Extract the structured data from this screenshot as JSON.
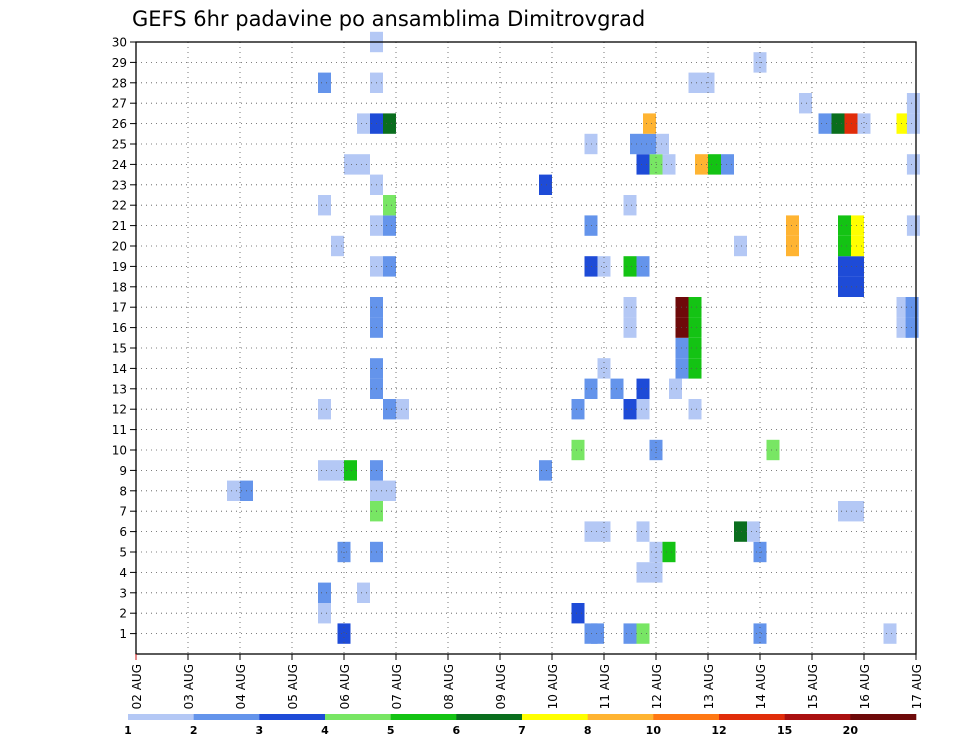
{
  "chart_data": {
    "type": "heatmap",
    "title": "GEFS 6hr padavine po ansamblima Dimitrovgrad",
    "xlabel": "",
    "ylabel": "",
    "x_tick_labels": [
      "02 AUG",
      "03 AUG",
      "04 AUG",
      "05 AUG",
      "06 AUG",
      "07 AUG",
      "08 AUG",
      "09 AUG",
      "10 AUG",
      "11 AUG",
      "12 AUG",
      "13 AUG",
      "14 AUG",
      "15 AUG",
      "16 AUG",
      "17 AUG"
    ],
    "y_tick_labels": [
      "1",
      "2",
      "3",
      "4",
      "5",
      "6",
      "7",
      "8",
      "9",
      "10",
      "11",
      "12",
      "13",
      "14",
      "15",
      "16",
      "17",
      "18",
      "19",
      "20",
      "21",
      "22",
      "23",
      "24",
      "25",
      "26",
      "27",
      "28",
      "29",
      "30"
    ],
    "xlim": [
      0,
      60
    ],
    "ylim": [
      0,
      30
    ],
    "grid": true,
    "x_unit_note": "x = 6-hour step index from 02 AUG 00Z (4 steps per day)",
    "levels": [
      "1",
      "2",
      "3",
      "4",
      "5",
      "6",
      "7",
      "8",
      "10",
      "12",
      "15",
      "20"
    ],
    "colors": [
      "#b4c8f5",
      "#6494eb",
      "#1e4bd7",
      "#78e664",
      "#14c314",
      "#0a6e1e",
      "#ffff00",
      "#ffb432",
      "#ff7814",
      "#e12d0a",
      "#aa1010",
      "#6e0a0a"
    ],
    "cells": [
      {
        "m": 1,
        "x": 16.0,
        "c": 2
      },
      {
        "m": 1,
        "x": 35.0,
        "c": 1
      },
      {
        "m": 1,
        "x": 35.5,
        "c": 1
      },
      {
        "m": 1,
        "x": 38.0,
        "c": 1
      },
      {
        "m": 1,
        "x": 39.0,
        "c": 3
      },
      {
        "m": 1,
        "x": 48.0,
        "c": 1
      },
      {
        "m": 1,
        "x": 58.0,
        "c": 0
      },
      {
        "m": 2,
        "x": 34.0,
        "c": 2
      },
      {
        "m": 2,
        "x": 14.5,
        "c": 0
      },
      {
        "m": 3,
        "x": 14.5,
        "c": 1
      },
      {
        "m": 3,
        "x": 17.5,
        "c": 0
      },
      {
        "m": 4,
        "x": 39.0,
        "c": 0
      },
      {
        "m": 4,
        "x": 40.0,
        "c": 0
      },
      {
        "m": 5,
        "x": 16.0,
        "c": 1
      },
      {
        "m": 5,
        "x": 18.5,
        "c": 1
      },
      {
        "m": 5,
        "x": 40.0,
        "c": 0
      },
      {
        "m": 5,
        "x": 41.0,
        "c": 4
      },
      {
        "m": 5,
        "x": 48.0,
        "c": 1
      },
      {
        "m": 6,
        "x": 35.0,
        "c": 0
      },
      {
        "m": 6,
        "x": 36.0,
        "c": 0
      },
      {
        "m": 6,
        "x": 39.0,
        "c": 0
      },
      {
        "m": 6,
        "x": 46.5,
        "c": 5
      },
      {
        "m": 6,
        "x": 47.5,
        "c": 0
      },
      {
        "m": 7,
        "x": 18.5,
        "c": 3
      },
      {
        "m": 7,
        "x": 54.5,
        "c": 0
      },
      {
        "m": 7,
        "x": 55.5,
        "c": 0
      },
      {
        "m": 8,
        "x": 7.5,
        "c": 0
      },
      {
        "m": 8,
        "x": 8.5,
        "c": 1
      },
      {
        "m": 8,
        "x": 18.5,
        "c": 0
      },
      {
        "m": 8,
        "x": 19.5,
        "c": 0
      },
      {
        "m": 9,
        "x": 14.5,
        "c": 0
      },
      {
        "m": 9,
        "x": 15.5,
        "c": 0
      },
      {
        "m": 9,
        "x": 16.5,
        "c": 4
      },
      {
        "m": 9,
        "x": 18.5,
        "c": 1
      },
      {
        "m": 9,
        "x": 31.5,
        "c": 1
      },
      {
        "m": 10,
        "x": 34.0,
        "c": 3
      },
      {
        "m": 10,
        "x": 40.0,
        "c": 1
      },
      {
        "m": 10,
        "x": 49.0,
        "c": 3
      },
      {
        "m": 12,
        "x": 14.5,
        "c": 0
      },
      {
        "m": 12,
        "x": 19.5,
        "c": 1
      },
      {
        "m": 12,
        "x": 20.5,
        "c": 0
      },
      {
        "m": 12,
        "x": 34.0,
        "c": 1
      },
      {
        "m": 12,
        "x": 38.0,
        "c": 2
      },
      {
        "m": 12,
        "x": 39.0,
        "c": 0
      },
      {
        "m": 12,
        "x": 43.0,
        "c": 0
      },
      {
        "m": 13,
        "x": 18.5,
        "c": 1
      },
      {
        "m": 13,
        "x": 35.0,
        "c": 1
      },
      {
        "m": 13,
        "x": 37.0,
        "c": 1
      },
      {
        "m": 13,
        "x": 39.0,
        "c": 2
      },
      {
        "m": 13,
        "x": 41.5,
        "c": 0
      },
      {
        "m": 14,
        "x": 18.5,
        "c": 1
      },
      {
        "m": 14,
        "x": 36.0,
        "c": 0
      },
      {
        "m": 14,
        "x": 42.0,
        "c": 1
      },
      {
        "m": 14,
        "x": 43.0,
        "c": 4
      },
      {
        "m": 15,
        "x": 42.0,
        "c": 1
      },
      {
        "m": 15,
        "x": 43.0,
        "c": 4
      },
      {
        "m": 16,
        "x": 18.5,
        "c": 1
      },
      {
        "m": 16,
        "x": 38.0,
        "c": 0
      },
      {
        "m": 16,
        "x": 42.0,
        "c": 11
      },
      {
        "m": 16,
        "x": 43.0,
        "c": 4
      },
      {
        "m": 16,
        "x": 59.0,
        "c": 0
      },
      {
        "m": 16,
        "x": 59.7,
        "c": 1
      },
      {
        "m": 17,
        "x": 18.5,
        "c": 1
      },
      {
        "m": 17,
        "x": 38.0,
        "c": 0
      },
      {
        "m": 17,
        "x": 42.0,
        "c": 11
      },
      {
        "m": 17,
        "x": 43.0,
        "c": 4
      },
      {
        "m": 17,
        "x": 59.0,
        "c": 0
      },
      {
        "m": 17,
        "x": 59.7,
        "c": 1
      },
      {
        "m": 18,
        "x": 54.5,
        "c": 2
      },
      {
        "m": 18,
        "x": 55.5,
        "c": 2
      },
      {
        "m": 19,
        "x": 18.5,
        "c": 0
      },
      {
        "m": 19,
        "x": 19.5,
        "c": 1
      },
      {
        "m": 19,
        "x": 35.0,
        "c": 2
      },
      {
        "m": 19,
        "x": 36.0,
        "c": 0
      },
      {
        "m": 19,
        "x": 38.0,
        "c": 4
      },
      {
        "m": 19,
        "x": 39.0,
        "c": 1
      },
      {
        "m": 19,
        "x": 54.5,
        "c": 2
      },
      {
        "m": 19,
        "x": 55.5,
        "c": 2
      },
      {
        "m": 20,
        "x": 15.5,
        "c": 0
      },
      {
        "m": 20,
        "x": 46.5,
        "c": 0
      },
      {
        "m": 20,
        "x": 50.5,
        "c": 7
      },
      {
        "m": 20,
        "x": 54.5,
        "c": 4
      },
      {
        "m": 20,
        "x": 55.5,
        "c": 6
      },
      {
        "m": 21,
        "x": 18.5,
        "c": 0
      },
      {
        "m": 21,
        "x": 19.5,
        "c": 1
      },
      {
        "m": 21,
        "x": 35.0,
        "c": 1
      },
      {
        "m": 21,
        "x": 50.5,
        "c": 7
      },
      {
        "m": 21,
        "x": 54.5,
        "c": 4
      },
      {
        "m": 21,
        "x": 55.5,
        "c": 6
      },
      {
        "m": 21,
        "x": 59.8,
        "c": 0
      },
      {
        "m": 22,
        "x": 14.5,
        "c": 0
      },
      {
        "m": 22,
        "x": 19.5,
        "c": 3
      },
      {
        "m": 22,
        "x": 38.0,
        "c": 0
      },
      {
        "m": 23,
        "x": 18.5,
        "c": 0
      },
      {
        "m": 23,
        "x": 31.5,
        "c": 2
      },
      {
        "m": 24,
        "x": 16.5,
        "c": 0
      },
      {
        "m": 24,
        "x": 17.5,
        "c": 0
      },
      {
        "m": 24,
        "x": 39.0,
        "c": 2
      },
      {
        "m": 24,
        "x": 40.0,
        "c": 3
      },
      {
        "m": 24,
        "x": 41.0,
        "c": 0
      },
      {
        "m": 24,
        "x": 43.5,
        "c": 7
      },
      {
        "m": 24,
        "x": 44.5,
        "c": 4
      },
      {
        "m": 24,
        "x": 45.5,
        "c": 1
      },
      {
        "m": 24,
        "x": 59.8,
        "c": 0
      },
      {
        "m": 25,
        "x": 35.0,
        "c": 0
      },
      {
        "m": 25,
        "x": 38.5,
        "c": 1
      },
      {
        "m": 25,
        "x": 39.5,
        "c": 1
      },
      {
        "m": 25,
        "x": 40.5,
        "c": 0
      },
      {
        "m": 26,
        "x": 17.5,
        "c": 0
      },
      {
        "m": 26,
        "x": 18.5,
        "c": 2
      },
      {
        "m": 26,
        "x": 19.5,
        "c": 5
      },
      {
        "m": 26,
        "x": 39.5,
        "c": 7
      },
      {
        "m": 26,
        "x": 53.0,
        "c": 1
      },
      {
        "m": 26,
        "x": 54.0,
        "c": 5
      },
      {
        "m": 26,
        "x": 55.0,
        "c": 9
      },
      {
        "m": 26,
        "x": 56.0,
        "c": 0
      },
      {
        "m": 26,
        "x": 59.0,
        "c": 6
      },
      {
        "m": 26,
        "x": 59.8,
        "c": 0
      },
      {
        "m": 27,
        "x": 51.5,
        "c": 0
      },
      {
        "m": 27,
        "x": 59.8,
        "c": 0
      },
      {
        "m": 28,
        "x": 14.5,
        "c": 1
      },
      {
        "m": 28,
        "x": 18.5,
        "c": 0
      },
      {
        "m": 28,
        "x": 43.0,
        "c": 0
      },
      {
        "m": 28,
        "x": 44.0,
        "c": 0
      },
      {
        "m": 29,
        "x": 48.0,
        "c": 0
      },
      {
        "m": 30,
        "x": 18.5,
        "c": 0
      }
    ]
  }
}
